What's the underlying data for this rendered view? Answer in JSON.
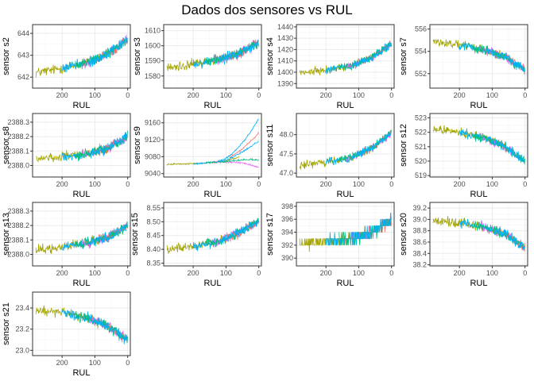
{
  "title": "Dados dos sensores vs RUL",
  "colors": {
    "series_1": "#A3A500",
    "series_2": "#00B0F6",
    "series_3": "#E76BF3",
    "series_4": "#F8766D",
    "series_5": "#00BF7D",
    "grid_major": "#ebebeb",
    "grid_minor": "#f5f5f5",
    "panel_border": "#333333",
    "axis_text": "#4d4d4d"
  },
  "chart_data": [
    {
      "type": "line",
      "title": "",
      "xlabel": "RUL",
      "ylabel": "sensor s2",
      "xlim": [
        290,
        -8
      ],
      "ylim": [
        641.5,
        644.4
      ],
      "x_ticks": [
        200,
        100,
        0
      ],
      "y_ticks": [
        642,
        643,
        644
      ],
      "grid": true,
      "trend": [
        [
          280,
          642.2
        ],
        [
          220,
          642.35
        ],
        [
          150,
          642.55
        ],
        [
          100,
          642.8
        ],
        [
          50,
          643.15
        ],
        [
          0,
          643.75
        ]
      ],
      "noise": 0.35
    },
    {
      "type": "line",
      "title": "",
      "xlabel": "RUL",
      "ylabel": "sensor s3",
      "xlim": [
        290,
        -8
      ],
      "ylim": [
        1572,
        1614
      ],
      "x_ticks": [
        200,
        100,
        0
      ],
      "y_ticks": [
        1580,
        1590,
        1600,
        1610
      ],
      "grid": true,
      "trend": [
        [
          280,
          1585
        ],
        [
          200,
          1588
        ],
        [
          120,
          1591
        ],
        [
          60,
          1595
        ],
        [
          0,
          1602
        ]
      ],
      "noise": 5
    },
    {
      "type": "line",
      "title": "",
      "xlabel": "RUL",
      "ylabel": "sensor s4",
      "xlim": [
        290,
        -8
      ],
      "ylim": [
        1386,
        1442
      ],
      "x_ticks": [
        200,
        100,
        0
      ],
      "y_ticks": [
        1390,
        1400,
        1410,
        1420,
        1430,
        1440
      ],
      "grid": true,
      "trend": [
        [
          280,
          1399
        ],
        [
          200,
          1402
        ],
        [
          120,
          1406
        ],
        [
          60,
          1413
        ],
        [
          0,
          1425
        ]
      ],
      "noise": 5
    },
    {
      "type": "line",
      "title": "",
      "xlabel": "RUL",
      "ylabel": "sensor s7",
      "xlim": [
        290,
        -8
      ],
      "ylim": [
        550.7,
        556.4
      ],
      "x_ticks": [
        200,
        100,
        0
      ],
      "y_ticks": [
        552,
        554,
        556
      ],
      "grid": true,
      "trend": [
        [
          280,
          554.9
        ],
        [
          200,
          554.6
        ],
        [
          120,
          554.1
        ],
        [
          60,
          553.5
        ],
        [
          0,
          552.3
        ]
      ],
      "noise": 0.6
    },
    {
      "type": "line",
      "title": "",
      "xlabel": "RUL",
      "ylabel": "sensor s8",
      "xlim": [
        290,
        -8
      ],
      "ylim": [
        2387.92,
        2388.36
      ],
      "x_ticks": [
        200,
        100,
        0
      ],
      "y_ticks": [
        2388.0,
        2388.1,
        2388.2,
        2388.3
      ],
      "grid": true,
      "trend": [
        [
          280,
          2388.05
        ],
        [
          200,
          2388.06
        ],
        [
          120,
          2388.08
        ],
        [
          60,
          2388.12
        ],
        [
          0,
          2388.2
        ]
      ],
      "noise": 0.05
    },
    {
      "type": "line",
      "title": "",
      "xlabel": "RUL",
      "ylabel": "sensor s9",
      "xlim": [
        290,
        -8
      ],
      "ylim": [
        9032,
        9182
      ],
      "x_ticks": [
        200,
        100,
        0
      ],
      "y_ticks": [
        9040,
        9080,
        9120,
        9160
      ],
      "grid": true,
      "fan": true,
      "trend": [
        [
          280,
          9062
        ],
        [
          200,
          9063
        ],
        [
          150,
          9066
        ],
        [
          100,
          9070
        ],
        [
          50,
          9082
        ],
        [
          0,
          9095
        ]
      ],
      "noise": 3
    },
    {
      "type": "line",
      "title": "",
      "xlabel": "RUL",
      "ylabel": "sensor s11",
      "xlim": [
        290,
        -8
      ],
      "ylim": [
        46.9,
        48.55
      ],
      "x_ticks": [
        200,
        100,
        0
      ],
      "y_ticks": [
        47.0,
        47.5,
        48.0
      ],
      "grid": true,
      "trend": [
        [
          280,
          47.2
        ],
        [
          200,
          47.28
        ],
        [
          120,
          47.42
        ],
        [
          60,
          47.65
        ],
        [
          0,
          48.05
        ]
      ],
      "noise": 0.15
    },
    {
      "type": "line",
      "title": "",
      "xlabel": "RUL",
      "ylabel": "sensor s12",
      "xlim": [
        290,
        -8
      ],
      "ylim": [
        518.9,
        523.3
      ],
      "x_ticks": [
        200,
        100,
        0
      ],
      "y_ticks": [
        519,
        520,
        521,
        522,
        523
      ],
      "grid": true,
      "trend": [
        [
          280,
          522.2
        ],
        [
          200,
          522.0
        ],
        [
          120,
          521.6
        ],
        [
          60,
          521.0
        ],
        [
          0,
          520.0
        ]
      ],
      "noise": 0.45
    },
    {
      "type": "line",
      "title": "",
      "xlabel": "RUL",
      "ylabel": "sensor s13",
      "xlim": [
        290,
        -8
      ],
      "ylim": [
        2387.92,
        2388.36
      ],
      "x_ticks": [
        200,
        100,
        0
      ],
      "y_ticks": [
        2388.0,
        2388.1,
        2388.2,
        2388.3
      ],
      "grid": true,
      "trend": [
        [
          280,
          2388.03
        ],
        [
          200,
          2388.05
        ],
        [
          120,
          2388.08
        ],
        [
          60,
          2388.12
        ],
        [
          0,
          2388.2
        ]
      ],
      "noise": 0.05
    },
    {
      "type": "line",
      "title": "",
      "xlabel": "RUL",
      "ylabel": "sensor s15",
      "xlim": [
        290,
        -8
      ],
      "ylim": [
        8.34,
        8.57
      ],
      "x_ticks": [
        200,
        100,
        0
      ],
      "y_ticks": [
        8.35,
        8.4,
        8.45,
        8.5,
        8.55
      ],
      "grid": true,
      "trend": [
        [
          280,
          8.4
        ],
        [
          200,
          8.41
        ],
        [
          120,
          8.43
        ],
        [
          60,
          8.46
        ],
        [
          0,
          8.5
        ]
      ],
      "noise": 0.025
    },
    {
      "type": "line",
      "title": "",
      "xlabel": "RUL",
      "ylabel": "sensor s17",
      "xlim": [
        290,
        -8
      ],
      "ylim": [
        388.8,
        398.6
      ],
      "x_ticks": [
        200,
        100,
        0
      ],
      "y_ticks": [
        390,
        392,
        394,
        396,
        398
      ],
      "grid": true,
      "stepped": true,
      "trend": [
        [
          280,
          392.3
        ],
        [
          200,
          392.6
        ],
        [
          120,
          393.0
        ],
        [
          60,
          394.0
        ],
        [
          0,
          396.0
        ]
      ],
      "noise": 1.3
    },
    {
      "type": "line",
      "title": "",
      "xlabel": "RUL",
      "ylabel": "sensor s20",
      "xlim": [
        290,
        -8
      ],
      "ylim": [
        38.18,
        39.3
      ],
      "x_ticks": [
        200,
        100,
        0
      ],
      "y_ticks": [
        38.2,
        38.4,
        38.6,
        38.8,
        39.0,
        39.2
      ],
      "grid": true,
      "trend": [
        [
          280,
          38.98
        ],
        [
          200,
          38.94
        ],
        [
          120,
          38.86
        ],
        [
          60,
          38.74
        ],
        [
          0,
          38.5
        ]
      ],
      "noise": 0.12
    },
    {
      "type": "line",
      "title": "",
      "xlabel": "RUL",
      "ylabel": "sensor s21",
      "xlim": [
        290,
        -8
      ],
      "ylim": [
        22.95,
        23.55
      ],
      "x_ticks": [
        200,
        100,
        0
      ],
      "y_ticks": [
        23.0,
        23.2,
        23.4
      ],
      "grid": true,
      "trend": [
        [
          280,
          23.38
        ],
        [
          200,
          23.36
        ],
        [
          120,
          23.3
        ],
        [
          60,
          23.23
        ],
        [
          0,
          23.1
        ]
      ],
      "noise": 0.07
    }
  ]
}
